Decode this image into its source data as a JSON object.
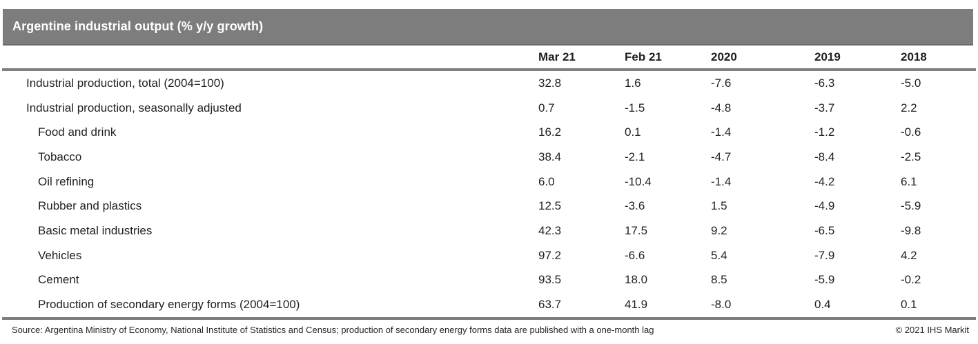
{
  "colors": {
    "title_bar_bg": "#7d7d7d",
    "title_text": "#ffffff",
    "rule_gray": "#7f7f7f",
    "body_text": "#1f1f1f"
  },
  "chart_data": {
    "type": "table",
    "title": "Argentine industrial output (% y/y growth)",
    "columns": [
      "Mar 21",
      "Feb 21",
      "2020",
      "2019",
      "2018"
    ],
    "rows": [
      {
        "label": "Industrial production, total (2004=100)",
        "indent": 1,
        "values": [
          "32.8",
          "1.6",
          "-7.6",
          "-6.3",
          "-5.0"
        ]
      },
      {
        "label": "Industrial production, seasonally adjusted",
        "indent": 1,
        "values": [
          "0.7",
          "-1.5",
          "-4.8",
          "-3.7",
          "2.2"
        ]
      },
      {
        "label": "Food and drink",
        "indent": 2,
        "values": [
          "16.2",
          "0.1",
          "-1.4",
          "-1.2",
          "-0.6"
        ]
      },
      {
        "label": "Tobacco",
        "indent": 2,
        "values": [
          "38.4",
          "-2.1",
          "-4.7",
          "-8.4",
          "-2.5"
        ]
      },
      {
        "label": "Oil refining",
        "indent": 2,
        "values": [
          "6.0",
          "-10.4",
          "-1.4",
          "-4.2",
          "6.1"
        ]
      },
      {
        "label": "Rubber and plastics",
        "indent": 2,
        "values": [
          "12.5",
          "-3.6",
          "1.5",
          "-4.9",
          "-5.9"
        ]
      },
      {
        "label": "Basic metal industries",
        "indent": 2,
        "values": [
          "42.3",
          "17.5",
          "9.2",
          "-6.5",
          "-9.8"
        ]
      },
      {
        "label": "Vehicles",
        "indent": 2,
        "values": [
          "97.2",
          "-6.6",
          "5.4",
          "-7.9",
          "4.2"
        ]
      },
      {
        "label": "Cement",
        "indent": 2,
        "values": [
          "93.5",
          "18.0",
          "8.5",
          "-5.9",
          "-0.2"
        ]
      },
      {
        "label": "Production of secondary energy forms (2004=100)",
        "indent": 2,
        "values": [
          "63.7",
          "41.9",
          "-8.0",
          "0.4",
          "0.1"
        ]
      }
    ],
    "source": "Source: Argentina Ministry of Economy, National Institute of Statistics and Census; production of secondary energy forms data are published with a one-month lag",
    "copyright": "© 2021 IHS Markit"
  }
}
